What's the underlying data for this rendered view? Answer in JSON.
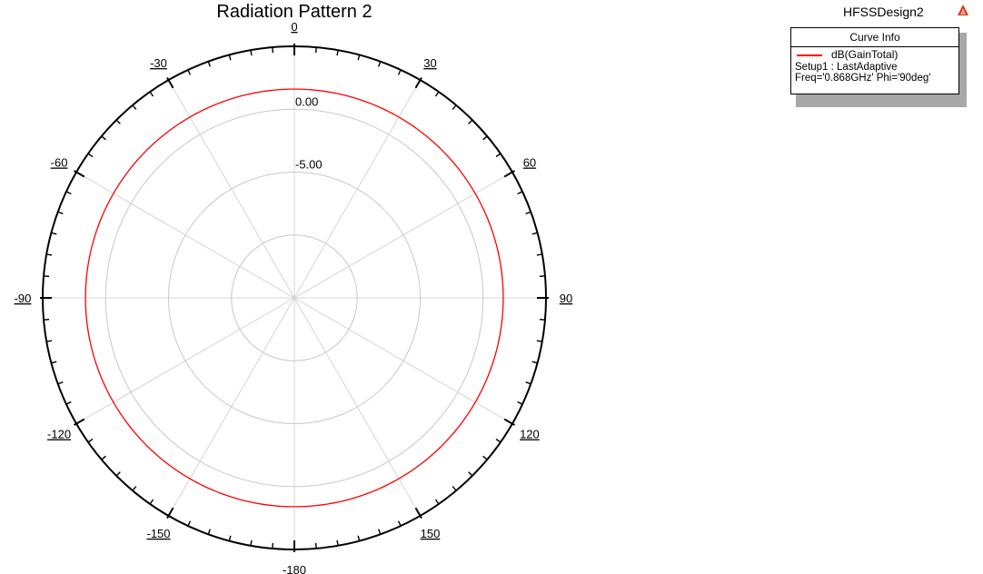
{
  "chart_data": {
    "type": "line",
    "subtype": "polar",
    "title": "Radiation Pattern 2",
    "design_name": "HFSSDesign2",
    "angle_direction": "clockwise",
    "angle_zero": "top",
    "angle_ticks": [
      0,
      30,
      60,
      90,
      120,
      150,
      -180,
      -150,
      -120,
      -90,
      -60,
      -30
    ],
    "radial_labels": [
      "0.00",
      "-5.00"
    ],
    "radial_range": [
      -15,
      5
    ],
    "radial_rings": [
      -10,
      -5,
      0
    ],
    "legend": {
      "header": "Curve Info",
      "placement": "top-right"
    },
    "series": [
      {
        "name": "dB(GainTotal)",
        "color": "#ff0000",
        "detail_lines": [
          "Setup1 : LastAdaptive",
          "Freq='0.868GHz' Phi='90deg'"
        ],
        "theta": [
          -180,
          -150,
          -120,
          -90,
          -60,
          -30,
          0,
          30,
          60,
          90,
          120,
          150,
          180
        ],
        "values": [
          1.6,
          1.6,
          1.6,
          1.6,
          1.6,
          1.6,
          1.6,
          1.6,
          1.6,
          1.6,
          1.6,
          1.6,
          1.6
        ]
      }
    ]
  }
}
